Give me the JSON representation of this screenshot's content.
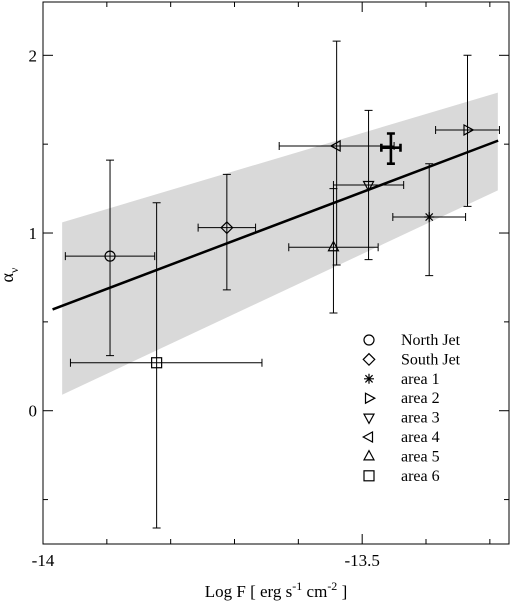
{
  "chart_data": {
    "type": "scatter",
    "title": "",
    "xlabel": "Log F  [ erg s",
    "xlabel_exp1": "-1",
    "xlabel_mid": " cm",
    "xlabel_exp2": "-2",
    "xlabel_end": " ]",
    "ylabel_main": "α",
    "ylabel_sub": "ν",
    "xlim": [
      -14.0,
      -13.27
    ],
    "ylim": [
      -0.75,
      2.3
    ],
    "xticks": [
      {
        "v": -14,
        "label": "-14"
      },
      {
        "v": -13.5,
        "label": "-13.5"
      }
    ],
    "yticks": [
      {
        "v": 0,
        "label": "0"
      },
      {
        "v": 1,
        "label": "1"
      },
      {
        "v": 2,
        "label": "2"
      }
    ],
    "x_minor_step": 0.1,
    "y_minor_step": 0.5,
    "legend_position": "bottom-right",
    "series": [
      {
        "name": "North Jet",
        "marker": "circle",
        "x": -13.895,
        "y": 0.87,
        "xerr": [
          0.07,
          0.07
        ],
        "yerr": [
          0.56,
          0.54
        ]
      },
      {
        "name": "South Jet",
        "marker": "diamond",
        "x": -13.712,
        "y": 1.03,
        "xerr": [
          0.045,
          0.045
        ],
        "yerr": [
          0.35,
          0.3
        ]
      },
      {
        "name": "area 1",
        "marker": "star",
        "x": -13.395,
        "y": 1.09,
        "xerr": [
          0.057,
          0.057
        ],
        "yerr": [
          0.33,
          0.3
        ]
      },
      {
        "name": "area 2",
        "marker": "triangle-right",
        "x": -13.335,
        "y": 1.58,
        "xerr": [
          0.05,
          0.05
        ],
        "yerr": [
          0.43,
          0.42
        ]
      },
      {
        "name": "area 3",
        "marker": "triangle-down",
        "x": -13.49,
        "y": 1.27,
        "xerr": [
          0.055,
          0.055
        ],
        "yerr": [
          0.42,
          0.42
        ]
      },
      {
        "name": "area 4",
        "marker": "triangle-left",
        "x": -13.54,
        "y": 1.49,
        "xerr": [
          0.09,
          0.09
        ],
        "yerr": [
          0.67,
          0.59
        ]
      },
      {
        "name": "area 5",
        "marker": "triangle-up",
        "x": -13.545,
        "y": 0.92,
        "xerr": [
          0.07,
          0.07
        ],
        "yerr": [
          0.37,
          0.33
        ]
      },
      {
        "name": "area 6",
        "marker": "square",
        "x": -13.822,
        "y": 0.27,
        "xerr": [
          0.135,
          0.165
        ],
        "yerr": [
          0.93,
          0.9
        ]
      }
    ],
    "extra_point": {
      "marker": "cross",
      "x": -13.455,
      "y": 1.48,
      "xerr": [
        0.015,
        0.015
      ],
      "yerr": [
        0.09,
        0.08
      ]
    },
    "fit_line": {
      "x": [
        -13.985,
        -13.287
      ],
      "y": [
        0.57,
        1.52
      ]
    },
    "confidence_band": {
      "x": [
        -13.97,
        -13.2875
      ],
      "upper": [
        1.06,
        1.79
      ],
      "lower": [
        0.09,
        1.24
      ],
      "color": "#d9d9d9"
    }
  }
}
